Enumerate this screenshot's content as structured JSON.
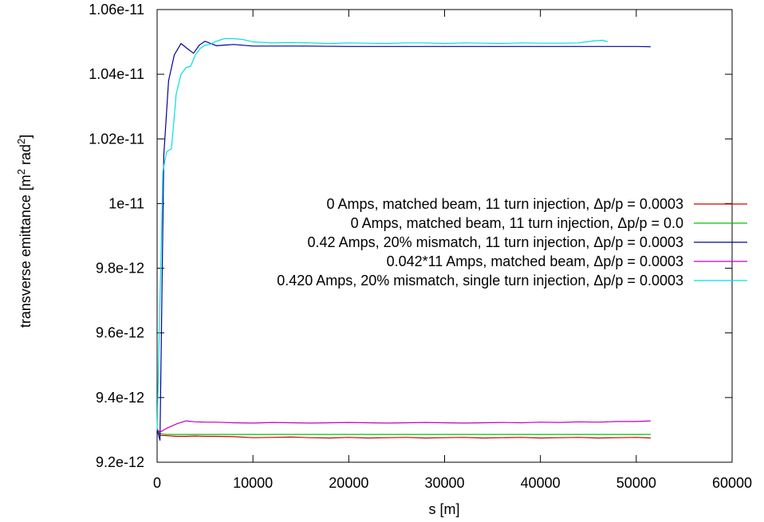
{
  "chart_data": {
    "type": "line",
    "title": "",
    "xlabel": "s [m]",
    "ylabel_main": "transverse emittance [m",
    "ylabel_sup1": "2",
    "ylabel_mid": " rad",
    "ylabel_sup2": "2",
    "ylabel_end": "]",
    "xlim": [
      0,
      60000
    ],
    "ylim": [
      9.2e-12,
      1.06e-11
    ],
    "x_ticks": [
      {
        "value": 0,
        "label": "0"
      },
      {
        "value": 10000,
        "label": "10000"
      },
      {
        "value": 20000,
        "label": "20000"
      },
      {
        "value": 30000,
        "label": "30000"
      },
      {
        "value": 40000,
        "label": "40000"
      },
      {
        "value": 50000,
        "label": "50000"
      },
      {
        "value": 60000,
        "label": "60000"
      }
    ],
    "y_ticks": [
      {
        "value": 9.2e-12,
        "label": "9.2e-12"
      },
      {
        "value": 9.4e-12,
        "label": "9.4e-12"
      },
      {
        "value": 9.6e-12,
        "label": "9.6e-12"
      },
      {
        "value": 9.8e-12,
        "label": "9.8e-12"
      },
      {
        "value": 1e-11,
        "label": "1e-11"
      },
      {
        "value": 1.02e-11,
        "label": "1.02e-11"
      },
      {
        "value": 1.04e-11,
        "label": "1.04e-11"
      },
      {
        "value": 1.06e-11,
        "label": "1.06e-11"
      }
    ],
    "grid": false,
    "legend_position": "right",
    "series": [
      {
        "name": "0 Amps, matched beam, 11 turn injection, Δp/p = 0.0003",
        "color": "#d00000",
        "x": [
          0,
          300,
          1000,
          2000,
          3000,
          4000,
          5000,
          6000,
          8000,
          10000,
          12000,
          14000,
          16000,
          18000,
          20000,
          22000,
          24000,
          26000,
          28000,
          30000,
          32000,
          34000,
          36000,
          38000,
          40000,
          42000,
          44000,
          46000,
          48000,
          50000,
          51500
        ],
        "y": [
          9.305e-12,
          9.283e-12,
          9.282e-12,
          9.28e-12,
          9.28e-12,
          9.281e-12,
          9.28e-12,
          9.28e-12,
          9.279e-12,
          9.276e-12,
          9.277e-12,
          9.278e-12,
          9.276e-12,
          9.275e-12,
          9.277e-12,
          9.275e-12,
          9.276e-12,
          9.277e-12,
          9.275e-12,
          9.276e-12,
          9.277e-12,
          9.275e-12,
          9.276e-12,
          9.277e-12,
          9.275e-12,
          9.276e-12,
          9.277e-12,
          9.275e-12,
          9.276e-12,
          9.277e-12,
          9.275e-12
        ]
      },
      {
        "name": "0 Amps, matched beam, 11 turn injection, Δp/p = 0.0",
        "color": "#00c000",
        "x": [
          0,
          300,
          1000,
          3000,
          6000,
          10000,
          20000,
          30000,
          40000,
          51500
        ],
        "y": [
          9.3e-12,
          9.288e-12,
          9.286e-12,
          9.286e-12,
          9.286e-12,
          9.286e-12,
          9.286e-12,
          9.286e-12,
          9.286e-12,
          9.286e-12
        ]
      },
      {
        "name": "0.42 Amps, 20% mismatch, 11 turn injection, Δp/p = 0.0003",
        "color": "#0000a0",
        "x": [
          0,
          300,
          700,
          1200,
          1800,
          2500,
          3200,
          3800,
          4400,
          5000,
          5600,
          6200,
          7000,
          8000,
          10000,
          15000,
          20000,
          25000,
          30000,
          35000,
          40000,
          45000,
          50000,
          51500
        ],
        "y": [
          9.3e-12,
          9.268e-12,
          1.015e-11,
          1.038e-11,
          1.046e-11,
          1.0495e-11,
          1.0478e-11,
          1.0465e-11,
          1.049e-11,
          1.0502e-11,
          1.0495e-11,
          1.0488e-11,
          1.049e-11,
          1.0492e-11,
          1.0487e-11,
          1.0487e-11,
          1.0486e-11,
          1.0486e-11,
          1.0486e-11,
          1.0486e-11,
          1.0486e-11,
          1.0486e-11,
          1.0486e-11,
          1.0485e-11
        ]
      },
      {
        "name": "0.042*11 Amps, matched beam, Δp/p = 0.0003",
        "color": "#c000c0",
        "x": [
          0,
          300,
          1000,
          2000,
          3000,
          4000,
          5000,
          6000,
          8000,
          10000,
          12000,
          14000,
          16000,
          18000,
          20000,
          22000,
          24000,
          26000,
          28000,
          30000,
          32000,
          34000,
          36000,
          38000,
          40000,
          42000,
          44000,
          46000,
          48000,
          50000,
          51500
        ],
        "y": [
          9.3e-12,
          9.293e-12,
          9.305e-12,
          9.318e-12,
          9.328e-12,
          9.325e-12,
          9.324e-12,
          9.324e-12,
          9.322e-12,
          9.321e-12,
          9.323e-12,
          9.322e-12,
          9.321e-12,
          9.322e-12,
          9.323e-12,
          9.322e-12,
          9.321e-12,
          9.322e-12,
          9.323e-12,
          9.322e-12,
          9.321e-12,
          9.322e-12,
          9.323e-12,
          9.322e-12,
          9.324e-12,
          9.323e-12,
          9.325e-12,
          9.324e-12,
          9.326e-12,
          9.326e-12,
          9.328e-12
        ]
      },
      {
        "name": "0.420 Amps, 20% mismatch, single turn injection, Δp/p = 0.0003",
        "color": "#00e0e0",
        "x": [
          0,
          300,
          600,
          1000,
          1500,
          2000,
          2500,
          3000,
          3500,
          4000,
          4500,
          5000,
          5500,
          6000,
          7000,
          8000,
          9000,
          10000,
          12000,
          14000,
          16000,
          18000,
          20000,
          22000,
          24000,
          26000,
          28000,
          30000,
          32000,
          34000,
          36000,
          38000,
          40000,
          42000,
          44000,
          45500,
          46500,
          47000
        ],
        "y": [
          9.3e-12,
          9.7e-12,
          1.01e-11,
          1.016e-11,
          1.017e-11,
          1.034e-11,
          1.04e-11,
          1.042e-11,
          1.0425e-11,
          1.046e-11,
          1.048e-11,
          1.049e-11,
          1.0492e-11,
          1.05e-11,
          1.051e-11,
          1.051e-11,
          1.0507e-11,
          1.05e-11,
          1.0497e-11,
          1.0498e-11,
          1.0497e-11,
          1.0495e-11,
          1.0497e-11,
          1.0496e-11,
          1.0495e-11,
          1.0497e-11,
          1.0497e-11,
          1.0495e-11,
          1.0497e-11,
          1.0496e-11,
          1.0495e-11,
          1.0497e-11,
          1.0496e-11,
          1.0496e-11,
          1.0497e-11,
          1.0503e-11,
          1.0505e-11,
          1.05e-11
        ]
      }
    ]
  }
}
